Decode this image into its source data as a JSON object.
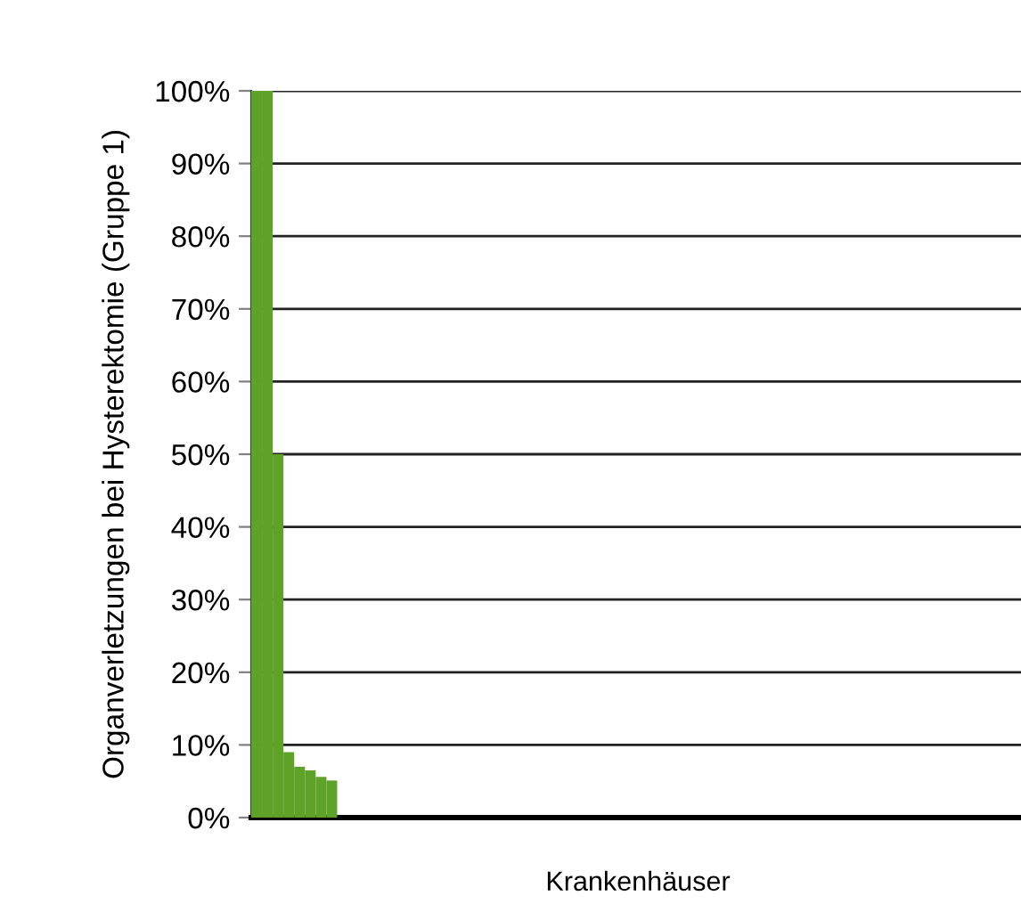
{
  "chart_data": {
    "type": "bar",
    "xlabel": "Krankenhäuser",
    "ylabel": "Organverletzungen bei Hysterektomie (Gruppe 1)",
    "categories": [
      null,
      null,
      null,
      null,
      null,
      null,
      null,
      null,
      null,
      null,
      null,
      null,
      null,
      null,
      null,
      null,
      null,
      null,
      null,
      null,
      null,
      null,
      null,
      null,
      null,
      null,
      null,
      null,
      null,
      null,
      null,
      null,
      null,
      null,
      null,
      null,
      null,
      null,
      null,
      null,
      null,
      null,
      null,
      null,
      null,
      null,
      null,
      null,
      null,
      null,
      null,
      null,
      null,
      null,
      null,
      null,
      null,
      null,
      null,
      null,
      null,
      null,
      null,
      null,
      null,
      null,
      null,
      null,
      null,
      null,
      null,
      null
    ],
    "values": [
      100,
      100,
      50,
      9,
      7,
      6.5,
      5.6,
      5.1,
      0,
      0,
      0,
      0,
      0,
      0,
      0,
      0,
      0,
      0,
      0,
      0,
      0,
      0,
      0,
      0,
      0,
      0,
      0,
      0,
      0,
      0,
      0,
      0,
      0,
      0,
      0,
      0,
      0,
      0,
      0,
      0,
      0,
      0,
      0,
      0,
      0,
      0,
      0,
      0,
      0,
      0,
      0,
      0,
      0,
      0,
      0,
      0,
      0,
      0,
      0,
      0,
      0,
      0,
      0,
      0,
      0,
      0,
      0,
      0,
      0,
      0,
      0,
      0
    ],
    "color": "#5fa228",
    "ylim": [
      0,
      100
    ],
    "yticks": [
      {
        "value": 0,
        "label": "0%"
      },
      {
        "value": 10,
        "label": "10%"
      },
      {
        "value": 20,
        "label": "20%"
      },
      {
        "value": 30,
        "label": "30%"
      },
      {
        "value": 40,
        "label": "40%"
      },
      {
        "value": 50,
        "label": "50%"
      },
      {
        "value": 60,
        "label": "60%"
      },
      {
        "value": 70,
        "label": "70%"
      },
      {
        "value": 80,
        "label": "80%"
      },
      {
        "value": 90,
        "label": "90%"
      },
      {
        "value": 100,
        "label": "100%"
      }
    ],
    "grid": "y",
    "legend": false
  }
}
